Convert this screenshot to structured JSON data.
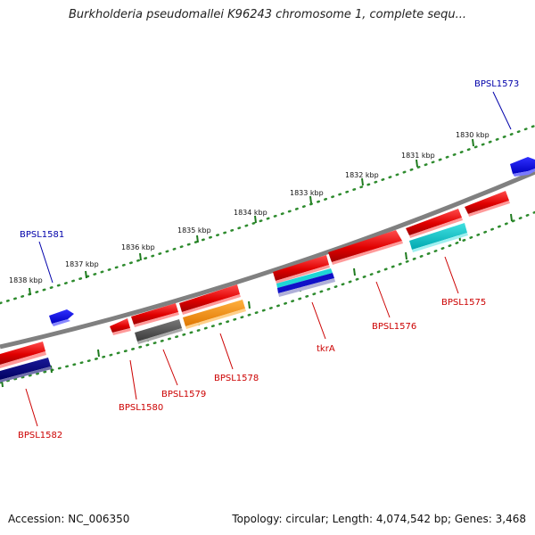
{
  "title": "Burkholderia pseudomallei K96243 chromosome 1, complete sequ...",
  "footer": {
    "accession": "Accession: NC_006350",
    "topology": "Topology: circular; Length: 4,074,542 bp; Genes: 3,468"
  },
  "colors": {
    "forward_label": "#0000aa",
    "reverse_label": "#cc0000",
    "scale_dots": "#228b22",
    "backbone": "#808080"
  },
  "scale_labels": [
    "1830 kbp",
    "1831 kbp",
    "1832 kbp",
    "1833 kbp",
    "1834 kbp",
    "1835 kbp",
    "1836 kbp",
    "1837 kbp",
    "1838 kbp"
  ],
  "gene_labels": [
    {
      "name": "BPSL1573",
      "strand": "forward"
    },
    {
      "name": "BPSL1581",
      "strand": "forward"
    },
    {
      "name": "BPSL1575",
      "strand": "reverse"
    },
    {
      "name": "BPSL1576",
      "strand": "reverse"
    },
    {
      "name": "tkrA",
      "strand": "reverse"
    },
    {
      "name": "BPSL1578",
      "strand": "reverse"
    },
    {
      "name": "BPSL1579",
      "strand": "reverse"
    },
    {
      "name": "BPSL1580",
      "strand": "reverse"
    },
    {
      "name": "BPSL1582",
      "strand": "reverse"
    }
  ]
}
